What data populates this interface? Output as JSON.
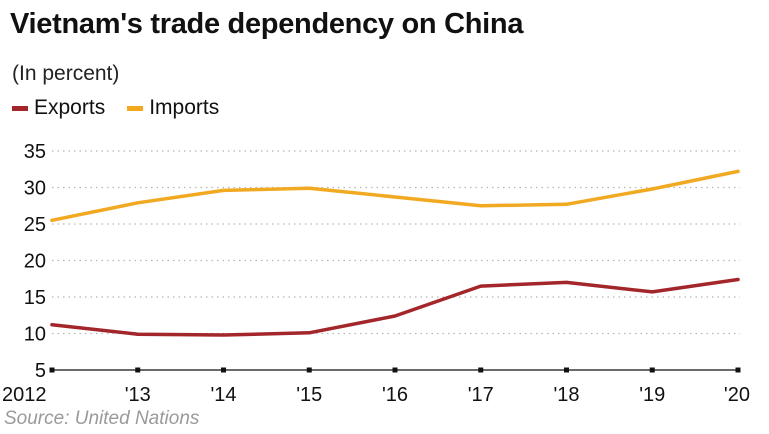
{
  "chart_data": {
    "type": "line",
    "title": "Vietnam's trade dependency on China",
    "subtitle": "(In percent)",
    "source": "Source: United Nations",
    "categories": [
      "2012",
      "'13",
      "'14",
      "'15",
      "'16",
      "'17",
      "'18",
      "'19",
      "'20"
    ],
    "ylim": [
      5,
      35
    ],
    "yticks": [
      5,
      10,
      15,
      20,
      25,
      30,
      35
    ],
    "xlabel": "",
    "ylabel": "",
    "grid": true,
    "legend_position": "top-left",
    "series": [
      {
        "name": "Exports",
        "color": "#a3262a",
        "values": [
          11.2,
          9.9,
          9.8,
          10.1,
          12.4,
          16.5,
          17.0,
          15.7,
          17.4
        ]
      },
      {
        "name": "Imports",
        "color": "#f2a922",
        "values": [
          25.5,
          27.9,
          29.6,
          29.9,
          28.7,
          27.5,
          27.7,
          29.8,
          32.2
        ]
      }
    ]
  }
}
